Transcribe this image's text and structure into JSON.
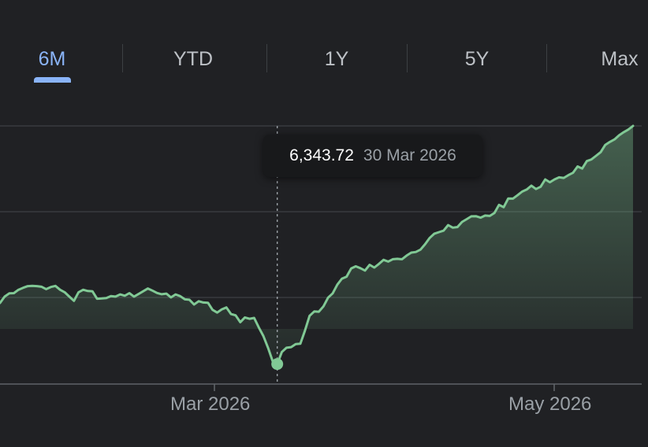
{
  "tabs": [
    {
      "label": "6M",
      "active": true
    },
    {
      "label": "YTD",
      "active": false
    },
    {
      "label": "1Y",
      "active": false
    },
    {
      "label": "5Y",
      "active": false
    },
    {
      "label": "Max",
      "active": false
    }
  ],
  "tooltip": {
    "value": "6,343.72",
    "date": "30 Mar 2026"
  },
  "colors": {
    "line": "#81c995",
    "accent": "#8ab4f8",
    "grid": "#3c4043",
    "background": "#202124"
  },
  "chart_data": {
    "type": "area",
    "series": [
      {
        "values": [
          6630,
          6660,
          6675,
          6676,
          6692,
          6701,
          6709,
          6710,
          6709,
          6706,
          6695,
          6705,
          6710,
          6692,
          6680,
          6660,
          6640,
          6680,
          6692,
          6686,
          6685,
          6650,
          6651,
          6653,
          6662,
          6660,
          6670,
          6664,
          6676,
          6660,
          6672,
          6685,
          6698,
          6688,
          6677,
          6671,
          6674,
          6656,
          6670,
          6662,
          6647,
          6645,
          6623,
          6638,
          6632,
          6631,
          6598,
          6585,
          6600,
          6609,
          6578,
          6572,
          6540,
          6562,
          6556,
          6560,
          6516,
          6475,
          6420,
          6358,
          6343.72,
          6400,
          6420,
          6423,
          6437,
          6439,
          6500,
          6570,
          6590,
          6589,
          6614,
          6655,
          6675,
          6716,
          6744,
          6753,
          6792,
          6802,
          6793,
          6782,
          6809,
          6796,
          6813,
          6832,
          6824,
          6835,
          6837,
          6835,
          6852,
          6866,
          6869,
          6880,
          6905,
          6935,
          6955,
          6962,
          6969,
          6995,
          6983,
          6986,
          7010,
          7023,
          7036,
          7037,
          7030,
          7040,
          7038,
          7052,
          7090,
          7079,
          7120,
          7119,
          7135,
          7152,
          7162,
          7180,
          7164,
          7175,
          7209,
          7196,
          7209,
          7219,
          7216,
          7229,
          7240,
          7270,
          7260,
          7295,
          7303,
          7320,
          7337,
          7371,
          7385,
          7397,
          7416,
          7431,
          7443,
          7460
        ]
      }
    ],
    "x_ticks": [
      "Mar 2026",
      "May 2026"
    ],
    "tooltip_index": 60,
    "grid": true
  }
}
